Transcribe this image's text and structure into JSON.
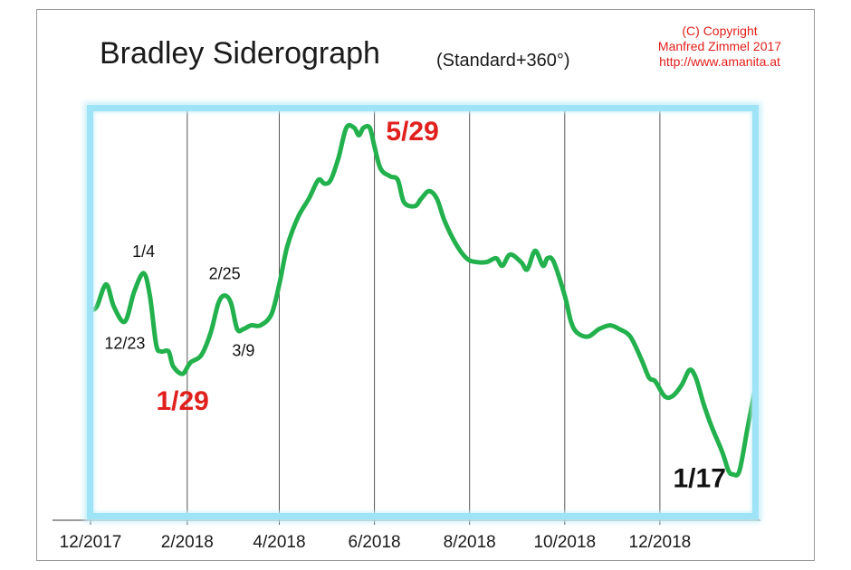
{
  "header": {
    "title": "Bradley Siderograph",
    "subtitle": "(Standard+360°)",
    "copyright_lines": [
      "(C) Copyright",
      "Manfred Zimmel 2017",
      "http://www.amanita.at"
    ]
  },
  "colors": {
    "line": "#22b14c",
    "glow": "#9ee3f6",
    "annotation_red": "#e0201c",
    "annotation_black": "#111111",
    "gridline": "#555555"
  },
  "chart_data": {
    "type": "line",
    "title": "Bradley Siderograph",
    "subtitle": "(Standard+360°)",
    "xlabel": "",
    "ylabel": "",
    "grid": "vertical",
    "legend": "none",
    "x_range": [
      "2017-12-01",
      "2019-01-31"
    ],
    "x_ticks": [
      {
        "date": "2017-12-01",
        "label": "12/2017"
      },
      {
        "date": "2018-02-01",
        "label": "2/2018"
      },
      {
        "date": "2018-04-01",
        "label": "4/2018"
      },
      {
        "date": "2018-06-01",
        "label": "6/2018"
      },
      {
        "date": "2018-08-01",
        "label": "8/2018"
      },
      {
        "date": "2018-10-01",
        "label": "10/2018"
      },
      {
        "date": "2018-12-01",
        "label": "12/2018"
      }
    ],
    "y_range": [
      0,
      100
    ],
    "series": [
      {
        "points": [
          [
            "2017-12-01",
            49
          ],
          [
            "2017-12-05",
            50
          ],
          [
            "2017-12-11",
            56
          ],
          [
            "2017-12-16",
            50
          ],
          [
            "2017-12-23",
            46
          ],
          [
            "2017-12-29",
            54
          ],
          [
            "2018-01-04",
            59
          ],
          [
            "2018-01-08",
            53
          ],
          [
            "2018-01-12",
            40
          ],
          [
            "2018-01-15",
            38
          ],
          [
            "2018-01-20",
            38
          ],
          [
            "2018-01-23",
            34
          ],
          [
            "2018-01-29",
            32
          ],
          [
            "2018-02-03",
            35
          ],
          [
            "2018-02-10",
            37
          ],
          [
            "2018-02-16",
            43
          ],
          [
            "2018-02-21",
            51
          ],
          [
            "2018-02-25",
            53
          ],
          [
            "2018-03-01",
            51
          ],
          [
            "2018-03-05",
            44
          ],
          [
            "2018-03-09",
            44
          ],
          [
            "2018-03-14",
            45
          ],
          [
            "2018-03-20",
            45
          ],
          [
            "2018-03-27",
            48
          ],
          [
            "2018-04-01",
            56
          ],
          [
            "2018-04-06",
            66
          ],
          [
            "2018-04-13",
            74
          ],
          [
            "2018-04-20",
            79
          ],
          [
            "2018-04-26",
            84
          ],
          [
            "2018-04-30",
            83
          ],
          [
            "2018-05-04",
            84
          ],
          [
            "2018-05-09",
            90
          ],
          [
            "2018-05-14",
            98
          ],
          [
            "2018-05-19",
            98
          ],
          [
            "2018-05-22",
            96
          ],
          [
            "2018-05-25",
            98
          ],
          [
            "2018-05-29",
            98
          ],
          [
            "2018-06-01",
            93
          ],
          [
            "2018-06-05",
            87
          ],
          [
            "2018-06-11",
            85
          ],
          [
            "2018-06-16",
            84
          ],
          [
            "2018-06-20",
            78
          ],
          [
            "2018-06-27",
            77
          ],
          [
            "2018-07-01",
            79
          ],
          [
            "2018-07-06",
            81
          ],
          [
            "2018-07-11",
            79
          ],
          [
            "2018-07-16",
            73
          ],
          [
            "2018-07-23",
            67
          ],
          [
            "2018-07-30",
            63
          ],
          [
            "2018-08-05",
            62
          ],
          [
            "2018-08-12",
            62
          ],
          [
            "2018-08-18",
            63
          ],
          [
            "2018-08-22",
            61
          ],
          [
            "2018-08-27",
            64
          ],
          [
            "2018-09-03",
            62
          ],
          [
            "2018-09-07",
            60
          ],
          [
            "2018-09-12",
            65
          ],
          [
            "2018-09-17",
            61
          ],
          [
            "2018-09-20",
            63
          ],
          [
            "2018-09-24",
            62
          ],
          [
            "2018-10-01",
            53
          ],
          [
            "2018-10-05",
            46
          ],
          [
            "2018-10-09",
            43
          ],
          [
            "2018-10-16",
            42
          ],
          [
            "2018-10-23",
            44
          ],
          [
            "2018-10-30",
            45
          ],
          [
            "2018-11-05",
            44
          ],
          [
            "2018-11-12",
            42
          ],
          [
            "2018-11-19",
            36
          ],
          [
            "2018-11-24",
            31
          ],
          [
            "2018-11-28",
            30
          ],
          [
            "2018-12-04",
            26
          ],
          [
            "2018-12-09",
            26
          ],
          [
            "2018-12-15",
            29
          ],
          [
            "2018-12-20",
            33
          ],
          [
            "2018-12-24",
            31
          ],
          [
            "2018-12-29",
            24
          ],
          [
            "2019-01-03",
            18
          ],
          [
            "2019-01-10",
            11
          ],
          [
            "2019-01-14",
            6
          ],
          [
            "2019-01-17",
            5
          ],
          [
            "2019-01-21",
            6
          ],
          [
            "2019-01-26",
            17
          ],
          [
            "2019-01-31",
            28
          ]
        ]
      }
    ],
    "annotations": [
      {
        "text": "12/23",
        "date": "2017-12-23",
        "value": 46,
        "position": "below",
        "color": "#111111",
        "size": "small"
      },
      {
        "text": "1/4",
        "date": "2018-01-04",
        "value": 59,
        "position": "above",
        "color": "#111111",
        "size": "small"
      },
      {
        "text": "1/29",
        "date": "2018-01-29",
        "value": 32,
        "position": "below",
        "color": "#e0201c",
        "size": "large"
      },
      {
        "text": "2/25",
        "date": "2018-02-25",
        "value": 53,
        "position": "above",
        "color": "#111111",
        "size": "small"
      },
      {
        "text": "3/9",
        "date": "2018-03-09",
        "value": 44,
        "position": "below",
        "color": "#111111",
        "size": "small"
      },
      {
        "text": "5/29",
        "date": "2018-05-29",
        "value": 98,
        "position": "right",
        "color": "#e0201c",
        "size": "large"
      },
      {
        "text": "1/17",
        "date": "2019-01-17",
        "value": 5,
        "position": "left",
        "color": "#111111",
        "size": "large"
      }
    ]
  }
}
